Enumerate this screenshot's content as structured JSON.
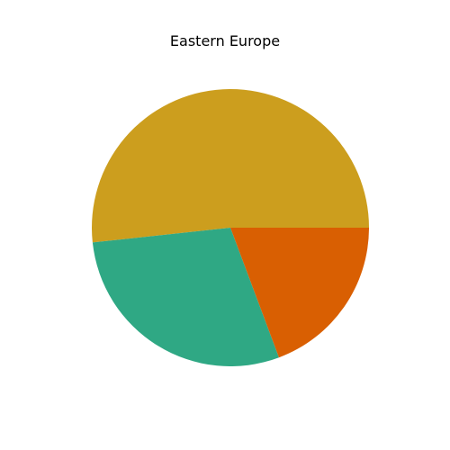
{
  "chart_data": {
    "type": "pie",
    "title": "Eastern Europe",
    "categories": [
      "",
      "",
      ""
    ],
    "values": [
      51.7,
      29.0,
      19.3
    ],
    "colors": [
      "#cc9e1e",
      "#2fa884",
      "#d95f02"
    ],
    "start_angle_deg": 0,
    "direction": "counterclockwise",
    "legend": "none"
  }
}
